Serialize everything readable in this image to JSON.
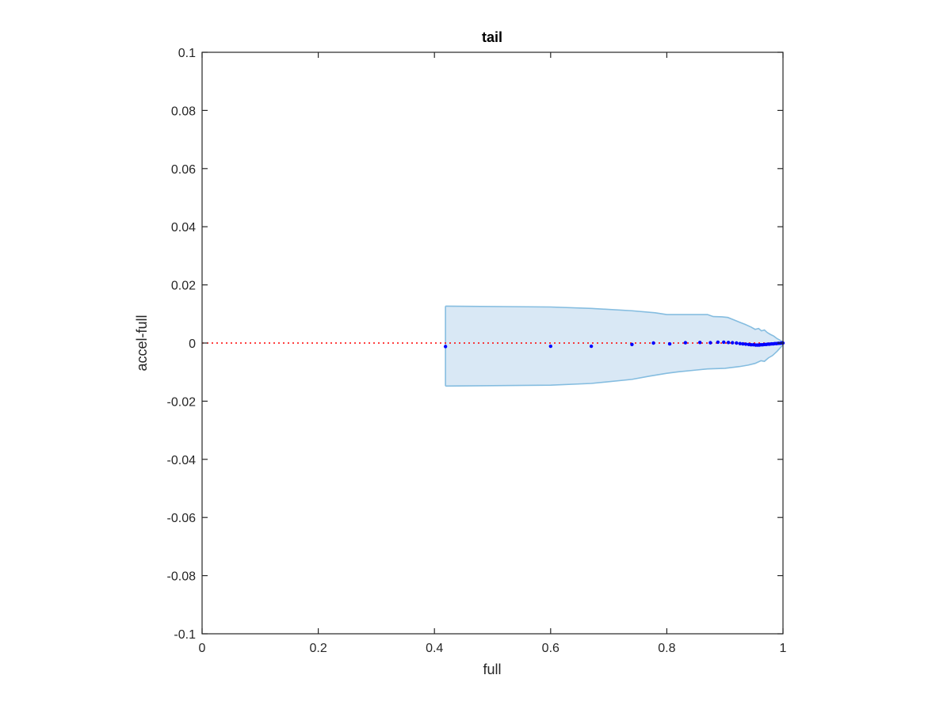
{
  "chart_data": {
    "type": "scatter",
    "title": "tail",
    "xlabel": "full",
    "ylabel": "accel-full",
    "xlim": [
      0,
      1
    ],
    "ylim": [
      -0.1,
      0.1
    ],
    "xticks": [
      0,
      0.2,
      0.4,
      0.6,
      0.8,
      1
    ],
    "xtick_labels": [
      "0",
      "0.2",
      "0.4",
      "0.6",
      "0.8",
      "1"
    ],
    "yticks": [
      0.1,
      0.08,
      0.06,
      0.04,
      0.02,
      0,
      -0.02,
      -0.04,
      -0.06,
      -0.08,
      -0.1
    ],
    "ytick_labels": [
      "0.1",
      "0.08",
      "0.06",
      "0.04",
      "0.02",
      "0",
      "-0.02",
      "-0.04",
      "-0.06",
      "-0.08",
      "-0.1"
    ],
    "grid": false,
    "reference_line": {
      "y": 0,
      "style": "dotted",
      "color": "#ff0000"
    },
    "band": {
      "fill_color": "#d9e8f5",
      "edge_color": "#85bde0",
      "upper": [
        [
          0.419,
          0.0127
        ],
        [
          0.6,
          0.0124
        ],
        [
          0.67,
          0.0119
        ],
        [
          0.74,
          0.0111
        ],
        [
          0.78,
          0.0104
        ],
        [
          0.8,
          0.0098
        ],
        [
          0.855,
          0.0098
        ],
        [
          0.87,
          0.0098
        ],
        [
          0.88,
          0.0091
        ],
        [
          0.895,
          0.009
        ],
        [
          0.905,
          0.0088
        ],
        [
          0.915,
          0.008
        ],
        [
          0.925,
          0.0072
        ],
        [
          0.935,
          0.0064
        ],
        [
          0.945,
          0.0055
        ],
        [
          0.952,
          0.0047
        ],
        [
          0.958,
          0.005
        ],
        [
          0.963,
          0.0042
        ],
        [
          0.968,
          0.0045
        ],
        [
          0.973,
          0.0036
        ],
        [
          0.978,
          0.003
        ],
        [
          0.984,
          0.0024
        ],
        [
          0.99,
          0.0015
        ],
        [
          1.0,
          0.0004
        ]
      ],
      "lower": [
        [
          0.419,
          -0.0148
        ],
        [
          0.6,
          -0.0145
        ],
        [
          0.67,
          -0.0139
        ],
        [
          0.74,
          -0.0125
        ],
        [
          0.77,
          -0.0114
        ],
        [
          0.8,
          -0.0104
        ],
        [
          0.82,
          -0.0099
        ],
        [
          0.85,
          -0.0093
        ],
        [
          0.87,
          -0.0089
        ],
        [
          0.9,
          -0.0087
        ],
        [
          0.925,
          -0.0081
        ],
        [
          0.94,
          -0.0076
        ],
        [
          0.952,
          -0.007
        ],
        [
          0.962,
          -0.0061
        ],
        [
          0.968,
          -0.0063
        ],
        [
          0.975,
          -0.0051
        ],
        [
          0.982,
          -0.0043
        ],
        [
          0.99,
          -0.0028
        ],
        [
          1.0,
          -0.0006
        ]
      ]
    },
    "series": [
      {
        "color": "#0000ff",
        "marker": "dot",
        "x": [
          0.419,
          0.6,
          0.67,
          0.74,
          0.777,
          0.805,
          0.832,
          0.857,
          0.875,
          0.888,
          0.898,
          0.906,
          0.913,
          0.92,
          0.926,
          0.931,
          0.936,
          0.941,
          0.945,
          0.949,
          0.953,
          0.956,
          0.959,
          0.962,
          0.965,
          0.968,
          0.971,
          0.974,
          0.977,
          0.98,
          0.983,
          0.986,
          0.989,
          0.992,
          0.995,
          0.998,
          1.0
        ],
        "y": [
          -0.0012,
          -0.0011,
          -0.0011,
          -0.0005,
          0.0,
          -0.0003,
          0.0001,
          0.0002,
          0.0001,
          0.0003,
          0.0003,
          0.0002,
          0.0001,
          0.0,
          -0.0002,
          -0.0003,
          -0.0004,
          -0.0005,
          -0.0006,
          -0.0006,
          -0.0007,
          -0.0007,
          -0.0007,
          -0.0006,
          -0.0006,
          -0.0005,
          -0.0005,
          -0.0004,
          -0.0004,
          -0.0003,
          -0.0003,
          -0.0002,
          -0.0002,
          -0.0001,
          -0.0001,
          0.0,
          0.0
        ]
      }
    ]
  }
}
